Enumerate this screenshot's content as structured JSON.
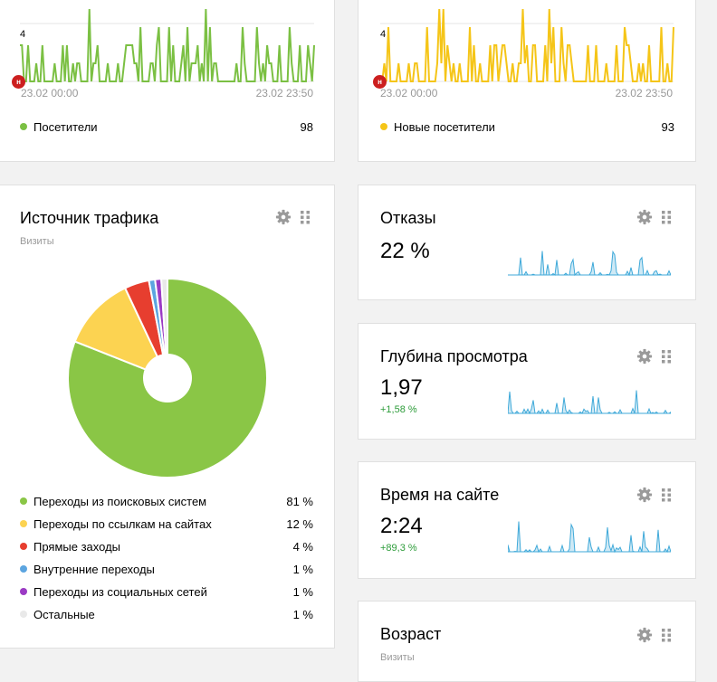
{
  "visitors_widget": {
    "ymax_label": "4",
    "date_start": "23.02 00:00",
    "date_end": "23.02 23:50",
    "holiday_marker": "н",
    "legend_label": "Посетители",
    "legend_value": "98",
    "color": "#7bc043"
  },
  "new_visitors_widget": {
    "ymax_label": "4",
    "date_start": "23.02 00:00",
    "date_end": "23.02 23:50",
    "holiday_marker": "н",
    "legend_label": "Новые посетители",
    "legend_value": "93",
    "color": "#f5c518"
  },
  "traffic_source": {
    "title": "Источник трафика",
    "subtitle": "Визиты",
    "settings_icon": "gear-icon",
    "drag_icon": "grip-icon",
    "items": [
      {
        "label": "Переходы из поисковых систем",
        "value": "81 %",
        "color": "#8ac646"
      },
      {
        "label": "Переходы по ссылкам на сайтах",
        "value": "12 %",
        "color": "#fcd351"
      },
      {
        "label": "Прямые заходы",
        "value": "4 %",
        "color": "#e73e2f"
      },
      {
        "label": "Внутренние переходы",
        "value": "1 %",
        "color": "#5ca5e0"
      },
      {
        "label": "Переходы из социальных сетей",
        "value": "1 %",
        "color": "#9b3bc4"
      },
      {
        "label": "Остальные",
        "value": "1 %",
        "color": "#e9e9e9"
      }
    ]
  },
  "bounce_widget": {
    "title": "Отказы",
    "value": "22 %",
    "delta": ""
  },
  "depth_widget": {
    "title": "Глубина просмотра",
    "value": "1,97",
    "delta": "+1,58 %"
  },
  "time_widget": {
    "title": "Время на сайте",
    "value": "2:24",
    "delta": "+89,3 %"
  },
  "age_widget": {
    "title": "Возраст",
    "subtitle": "Визиты"
  },
  "chart_data": {
    "type": "pie",
    "title": "Источник трафика",
    "categories": [
      "Переходы из поисковых систем",
      "Переходы по ссылкам на сайтах",
      "Прямые заходы",
      "Внутренние переходы",
      "Переходы из социальных сетей",
      "Остальные"
    ],
    "values": [
      81,
      12,
      4,
      1,
      1,
      1
    ],
    "unit": "%",
    "donut": true
  }
}
